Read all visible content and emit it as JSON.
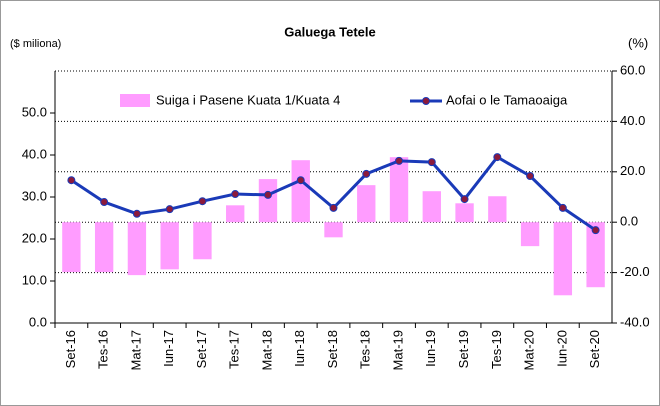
{
  "chart_data": {
    "type": "bar",
    "title": "Galuega Tetele",
    "y_label": "($ miliona)",
    "y2_label": "(%)",
    "categories": [
      "Set-16",
      "Tes-16",
      "Mat-17",
      "Iun-17",
      "Set-17",
      "Tes-17",
      "Mat-18",
      "Iun-18",
      "Set-18",
      "Tes-18",
      "Mat-19",
      "Iun-19",
      "Set-19",
      "Tes-19",
      "Mat-20",
      "Iun-20",
      "Set-20"
    ],
    "series": [
      {
        "name": "Suiga i Pasene Kuata 1/Kuata 4",
        "type": "bar",
        "axis": "y2",
        "color": "#ff9cff",
        "values": [
          -19.8,
          -19.8,
          -21.0,
          -18.7,
          -14.7,
          6.7,
          17.1,
          24.6,
          -6.0,
          14.7,
          25.8,
          12.3,
          7.5,
          10.3,
          -9.5,
          -29.0,
          -25.8
        ]
      },
      {
        "name": "Aofai o le Tamaoaiga",
        "type": "line",
        "axis": "y",
        "color": "#1a3ab8",
        "marker_color": "#8b1a3c",
        "values": [
          34.0,
          28.8,
          26.0,
          27.1,
          29.0,
          30.7,
          30.5,
          34.0,
          27.4,
          35.5,
          38.6,
          38.3,
          29.5,
          39.5,
          35.0,
          27.4,
          22.1
        ]
      }
    ],
    "ylim": [
      0,
      60
    ],
    "yticks": [
      {
        "value": 0,
        "label": "0.0"
      },
      {
        "value": 10,
        "label": "10.0"
      },
      {
        "value": 20,
        "label": "20.0"
      },
      {
        "value": 30,
        "label": "30.0"
      },
      {
        "value": 40,
        "label": "40.0"
      },
      {
        "value": 50,
        "label": "50.0"
      }
    ],
    "y2lim": [
      -40,
      60
    ],
    "y2ticks": [
      {
        "value": -40,
        "label": "-40.0"
      },
      {
        "value": -20,
        "label": "-20.0"
      },
      {
        "value": 0,
        "label": "0.0"
      },
      {
        "value": 20,
        "label": "20.0"
      },
      {
        "value": 40,
        "label": "40.0"
      },
      {
        "value": 60,
        "label": "60.0"
      }
    ],
    "grid": true
  }
}
